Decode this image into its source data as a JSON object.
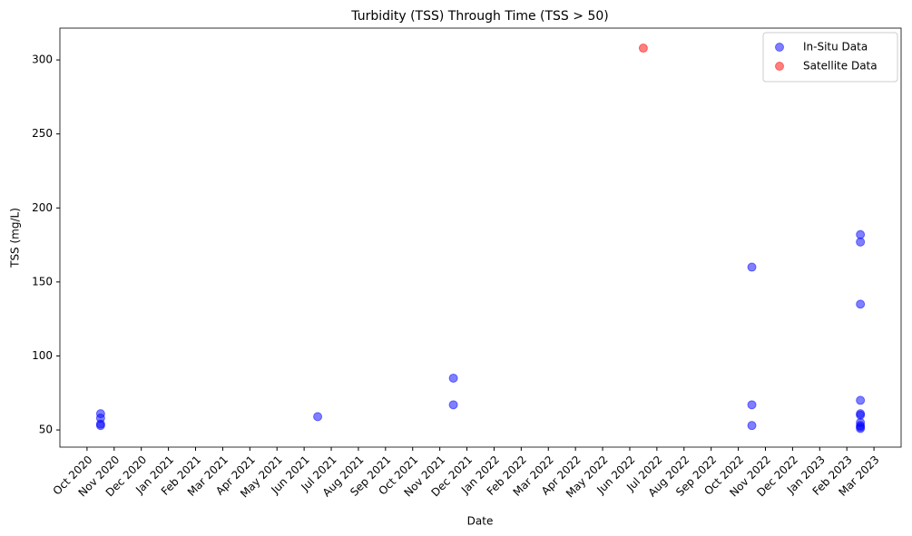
{
  "chart_data": {
    "type": "scatter",
    "title": "Turbidity (TSS) Through Time (TSS > 50)",
    "x_label": "Date",
    "y_label": "TSS (mg/L)",
    "series": [
      {
        "name": "In-Situ Data",
        "color": "#0000ff",
        "x": [
          "2020-10",
          "2020-10",
          "2020-10",
          "2020-10",
          "2021-06",
          "2021-11",
          "2021-11",
          "2022-10",
          "2022-10",
          "2022-10",
          "2023-02",
          "2023-02",
          "2023-02",
          "2023-02",
          "2023-02",
          "2023-02",
          "2023-02",
          "2023-02",
          "2023-02",
          "2023-02"
        ],
        "values": [
          61,
          58,
          54,
          53,
          59,
          85,
          67,
          160,
          67,
          53,
          182,
          177,
          135,
          70,
          61,
          60,
          55,
          53,
          52,
          51
        ]
      },
      {
        "name": "Satellite Data",
        "color": "#ff0000",
        "x": [
          "2022-06"
        ],
        "values": [
          308
        ]
      }
    ],
    "xlim": [
      "2020-09",
      "2023-04"
    ],
    "xticks": [
      {
        "value": "2020-10",
        "label": "Oct 2020"
      },
      {
        "value": "2020-11",
        "label": "Nov 2020"
      },
      {
        "value": "2020-12",
        "label": "Dec 2020"
      },
      {
        "value": "2021-01",
        "label": "Jan 2021"
      },
      {
        "value": "2021-02",
        "label": "Feb 2021"
      },
      {
        "value": "2021-03",
        "label": "Mar 2021"
      },
      {
        "value": "2021-04",
        "label": "Apr 2021"
      },
      {
        "value": "2021-05",
        "label": "May 2021"
      },
      {
        "value": "2021-06",
        "label": "Jun 2021"
      },
      {
        "value": "2021-07",
        "label": "Jul 2021"
      },
      {
        "value": "2021-08",
        "label": "Aug 2021"
      },
      {
        "value": "2021-09",
        "label": "Sep 2021"
      },
      {
        "value": "2021-10",
        "label": "Oct 2021"
      },
      {
        "value": "2021-11",
        "label": "Nov 2021"
      },
      {
        "value": "2021-12",
        "label": "Dec 2021"
      },
      {
        "value": "2022-01",
        "label": "Jan 2022"
      },
      {
        "value": "2022-02",
        "label": "Feb 2022"
      },
      {
        "value": "2022-03",
        "label": "Mar 2022"
      },
      {
        "value": "2022-04",
        "label": "Apr 2022"
      },
      {
        "value": "2022-05",
        "label": "May 2022"
      },
      {
        "value": "2022-06",
        "label": "Jun 2022"
      },
      {
        "value": "2022-07",
        "label": "Jul 2022"
      },
      {
        "value": "2022-08",
        "label": "Aug 2022"
      },
      {
        "value": "2022-09",
        "label": "Sep 2022"
      },
      {
        "value": "2022-10",
        "label": "Oct 2022"
      },
      {
        "value": "2022-11",
        "label": "Nov 2022"
      },
      {
        "value": "2022-12",
        "label": "Dec 2022"
      },
      {
        "value": "2023-01",
        "label": "Jan 2023"
      },
      {
        "value": "2023-02",
        "label": "Feb 2023"
      },
      {
        "value": "2023-03",
        "label": "Mar 2023"
      }
    ],
    "ylim": [
      38.4,
      321.5
    ],
    "yticks": [
      50,
      100,
      150,
      200,
      250,
      300
    ],
    "grid": false,
    "legend": "upper right",
    "alpha": 0.5
  }
}
